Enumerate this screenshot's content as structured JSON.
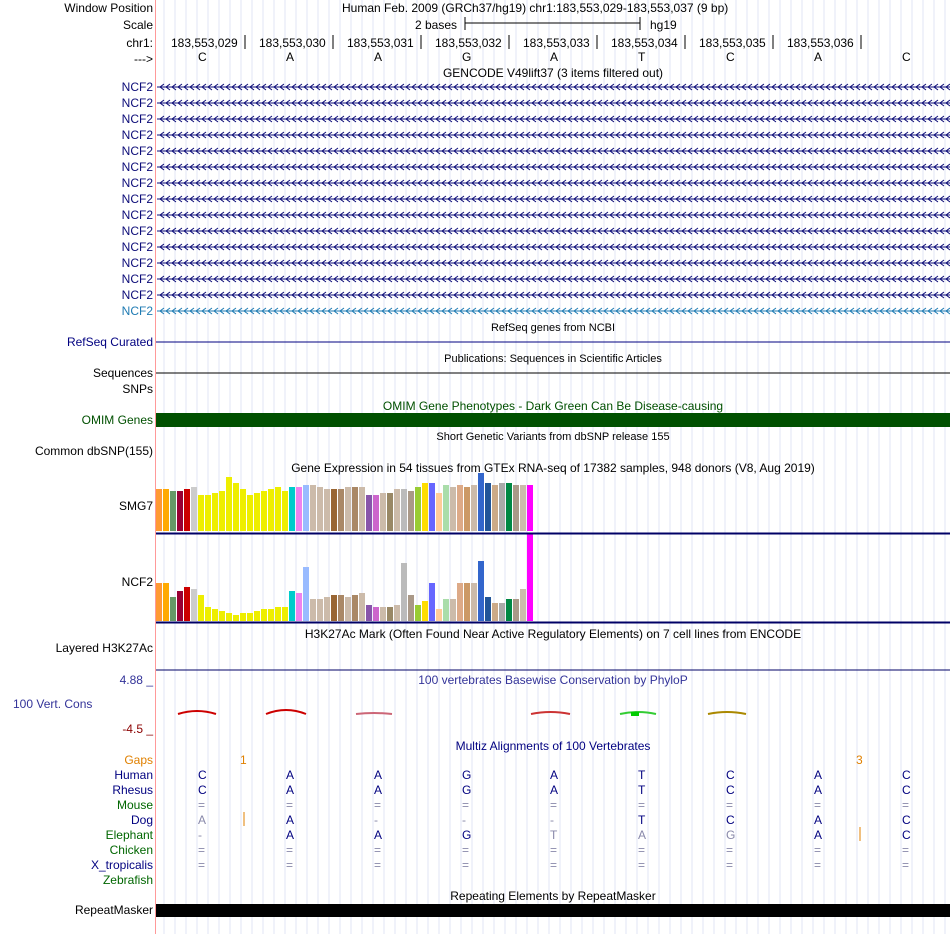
{
  "header": {
    "window_position_label": "Window Position",
    "window_position_value": "Human Feb. 2009 (GRCh37/hg19)   chr1:183,553,029-183,553,037 (9 bp)",
    "scale_label": "Scale",
    "scale_text": "2 bases",
    "scale_assembly": "hg19",
    "chrom_label": "chr1:",
    "strand_label": "--->",
    "coordinates": [
      "183,553,029",
      "183,553,030",
      "183,553,031",
      "183,553,032",
      "183,553,033",
      "183,553,034",
      "183,553,035",
      "183,553,036"
    ],
    "bases": [
      "C",
      "A",
      "A",
      "G",
      "A",
      "T",
      "C",
      "A",
      "C"
    ]
  },
  "gencode": {
    "title": "GENCODE V49lift37 (3 items filtered out)",
    "genes": [
      "NCF2",
      "NCF2",
      "NCF2",
      "NCF2",
      "NCF2",
      "NCF2",
      "NCF2",
      "NCF2",
      "NCF2",
      "NCF2",
      "NCF2",
      "NCF2",
      "NCF2",
      "NCF2",
      "NCF2"
    ]
  },
  "refseq": {
    "title": "RefSeq genes from NCBI",
    "label": "RefSeq Curated"
  },
  "publications": {
    "title": "Publications: Sequences in Scientific Articles",
    "label1": "Sequences",
    "label2": "SNPs"
  },
  "omim": {
    "title": "OMIM Gene Phenotypes - Dark Green Can Be Disease-causing",
    "label": "OMIM Genes",
    "color": "#005000"
  },
  "dbsnp": {
    "title": "Short Genetic Variants from dbSNP release 155",
    "label": "Common dbSNP(155)"
  },
  "gtex": {
    "title": "Gene Expression in 54 tissues from GTEx RNA-seq of 17382 samples, 948 donors (V8, Aug 2019)",
    "tissue_colors": [
      "#FF9933",
      "#FFAA00",
      "#669966",
      "#990033",
      "#CC0000",
      "#CCCCCC",
      "#EEEE00",
      "#EEEE00",
      "#EEEE00",
      "#EEEE00",
      "#EEEE00",
      "#EEEE00",
      "#EEEE00",
      "#EEEE00",
      "#EEEE00",
      "#EEEE00",
      "#EEEE00",
      "#EEEE00",
      "#EEEE00",
      "#00CCCC",
      "#EE82EE",
      "#99BBFF",
      "#CCBBAA",
      "#CCBBAA",
      "#CCBBAA",
      "#996633",
      "#AA8866",
      "#CCBBAA",
      "#AA8866",
      "#CCBBAA",
      "#8855AA",
      "#CC66CC",
      "#CCBBAA",
      "#998866",
      "#CCBBAA",
      "#BBBBBB",
      "#AA9988",
      "#99CC33",
      "#FFDD00",
      "#6666FF",
      "#FFCC99",
      "#AADDAA",
      "#CCBBAA",
      "#DDAA88",
      "#CC9966",
      "#CCBBAA",
      "#3366CC",
      "#225599",
      "#CCAA88",
      "#AAAAAA",
      "#008844",
      "#AA9988",
      "#CCBBAA",
      "#FF00FF"
    ],
    "tracks": [
      {
        "label": "SMG7",
        "values": [
          42,
          42,
          40,
          40,
          42,
          44,
          36,
          36,
          38,
          40,
          54,
          48,
          42,
          36,
          38,
          40,
          42,
          44,
          40,
          44,
          44,
          46,
          46,
          44,
          42,
          42,
          42,
          44,
          44,
          44,
          36,
          36,
          38,
          38,
          42,
          42,
          40,
          44,
          48,
          48,
          38,
          46,
          44,
          46,
          44,
          46,
          58,
          48,
          46,
          48,
          48,
          46,
          46,
          46
        ]
      },
      {
        "label": "NCF2",
        "values": [
          38,
          38,
          24,
          30,
          34,
          32,
          26,
          14,
          12,
          10,
          8,
          6,
          8,
          8,
          10,
          12,
          12,
          14,
          14,
          30,
          28,
          54,
          22,
          22,
          24,
          26,
          26,
          24,
          26,
          28,
          16,
          14,
          14,
          14,
          16,
          58,
          26,
          16,
          20,
          38,
          12,
          22,
          22,
          38,
          38,
          38,
          60,
          24,
          18,
          18,
          22,
          22,
          32,
          88
        ]
      }
    ]
  },
  "h3k27ac": {
    "title": "H3K27Ac Mark (Often Found Near Active Regulatory Elements) on 7 cell lines from ENCODE",
    "label": "Layered H3K27Ac"
  },
  "phylop": {
    "title": "100 vertebrates Basewise Conservation by PhyloP",
    "label": "100 Vert. Cons",
    "max_label": "4.88 _",
    "min_label": "-4.5 _"
  },
  "multiz": {
    "title": "Multiz Alignments of 100 Vertebrates",
    "gaps_label": "Gaps",
    "gap_numbers": [
      "1",
      "3"
    ],
    "species": [
      {
        "name": "Human",
        "bases": [
          "C",
          "A",
          "A",
          "G",
          "A",
          "T",
          "C",
          "A",
          "C"
        ]
      },
      {
        "name": "Rhesus",
        "bases": [
          "C",
          "A",
          "A",
          "G",
          "A",
          "T",
          "C",
          "A",
          "C"
        ]
      },
      {
        "name": "Mouse",
        "bases": [
          "=",
          "=",
          "=",
          "=",
          "=",
          "=",
          "=",
          "=",
          "="
        ]
      },
      {
        "name": "Dog",
        "bases": [
          "A",
          "A",
          "-",
          "-",
          "-",
          "T",
          "C",
          "A",
          "C"
        ]
      },
      {
        "name": "Elephant",
        "bases": [
          "-",
          "A",
          "A",
          "G",
          "T",
          "A",
          "G",
          "A",
          "C"
        ]
      },
      {
        "name": "Chicken",
        "bases": [
          "=",
          "=",
          "=",
          "=",
          "=",
          "=",
          "=",
          "=",
          "="
        ]
      },
      {
        "name": "X_tropicalis",
        "bases": [
          "=",
          "=",
          "=",
          "=",
          "=",
          "=",
          "=",
          "=",
          "="
        ]
      },
      {
        "name": "Zebrafish",
        "bases": [
          "",
          "",
          "",
          "",
          "",
          "",
          "",
          "",
          ""
        ]
      }
    ]
  },
  "repeatmasker": {
    "title": "Repeating Elements by RepeatMasker",
    "label": "RepeatMasker"
  }
}
